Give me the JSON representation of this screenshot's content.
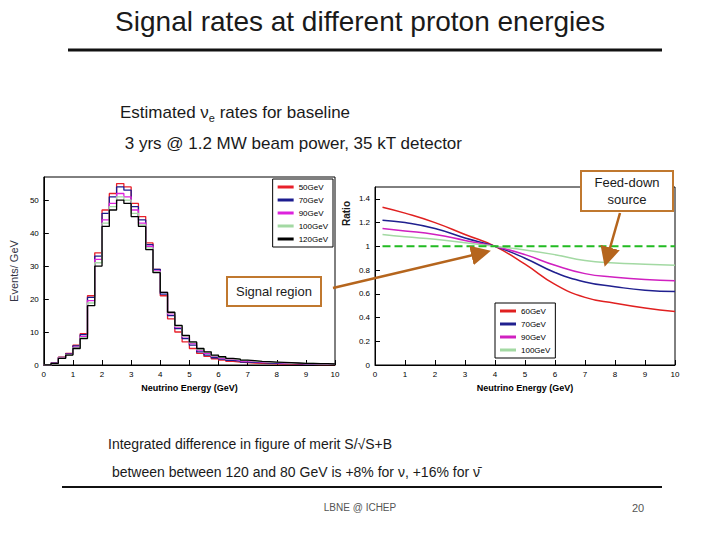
{
  "slide": {
    "title": "Signal rates at different proton energies",
    "subtitle": {
      "line1": {
        "text": "Estimated ν",
        "subscript": "e",
        "tail": " rates for baseline"
      },
      "line2": " 3 yrs @ 1.2 MW beam power, 35 kT detector"
    },
    "annotations": [
      {
        "lines": [
          "Feed-down",
          "source"
        ]
      },
      {
        "lines": [
          "Signal region"
        ]
      }
    ],
    "footer": {
      "line1": "Integrated difference in figure of merit S/√S+B",
      "line2": " between between 120 and 80 GeV is +8% for ν, +16% for ν̄"
    },
    "footer_center": "LBNE @ ICHEP",
    "page": "20"
  },
  "chart_data": [
    {
      "type": "histogram",
      "xlabel": "Neutrino Energy (GeV)",
      "ylabel": "Events/ GeV",
      "bins": [
        0,
        0.25,
        0.5,
        0.75,
        1,
        1.25,
        1.5,
        1.75,
        2,
        2.25,
        2.5,
        2.75,
        3,
        3.25,
        3.5,
        3.75,
        4,
        4.25,
        4.5,
        4.75,
        5,
        5.25,
        5.5,
        5.75,
        6,
        6.25,
        6.5,
        6.75,
        7,
        7.25,
        7.5,
        7.75,
        8,
        8.25,
        8.5,
        8.75,
        9,
        9.25,
        9.5,
        9.75,
        10
      ],
      "series": [
        {
          "name": "50GeV",
          "color": "#e8202a",
          "values": [
            0,
            0.6,
            2.4,
            3.5,
            6,
            9.5,
            21,
            34,
            47,
            52,
            55,
            54,
            49,
            45,
            37,
            29,
            21,
            14,
            10,
            7,
            5,
            3.5,
            2.6,
            1.9,
            1.5,
            1.1,
            0.9,
            0.7,
            0.6,
            0.5,
            0.4,
            0.35,
            0.3,
            0.25,
            0.2,
            0.2,
            0.18,
            0.15,
            0.15,
            0.1
          ]
        },
        {
          "name": "70GeV",
          "color": "#1c1c8f",
          "values": [
            0,
            0.6,
            2.3,
            3.4,
            5.8,
            9.2,
            20.5,
            33,
            46,
            51,
            54,
            53,
            48,
            44,
            36.5,
            29,
            21.5,
            15,
            11,
            8,
            6,
            4,
            3,
            2.2,
            1.8,
            1.4,
            1.2,
            0.9,
            0.8,
            0.7,
            0.6,
            0.5,
            0.45,
            0.4,
            0.35,
            0.3,
            0.3,
            0.25,
            0.25,
            0.2
          ]
        },
        {
          "name": "90GeV",
          "color": "#dd22dd",
          "values": [
            0,
            0.55,
            2.2,
            3.2,
            5.4,
            8.7,
            19.5,
            32,
            44,
            49,
            52,
            51,
            47,
            43,
            36,
            28.5,
            22,
            15.5,
            11.5,
            8.5,
            6.5,
            4.5,
            3.5,
            2.6,
            2.1,
            1.7,
            1.5,
            1.2,
            1.0,
            0.9,
            0.8,
            0.7,
            0.6,
            0.55,
            0.5,
            0.4,
            0.4,
            0.35,
            0.3,
            0.25
          ]
        },
        {
          "name": "100GeV",
          "color": "#a3d9a3",
          "values": [
            0,
            0.5,
            2.1,
            3.1,
            5.2,
            8.3,
            18.8,
            31,
            43,
            48,
            51,
            50,
            46,
            42.5,
            35.5,
            28.2,
            22,
            15.8,
            11.8,
            8.8,
            6.8,
            4.8,
            3.8,
            2.8,
            2.3,
            1.9,
            1.7,
            1.4,
            1.2,
            1.0,
            0.9,
            0.8,
            0.7,
            0.6,
            0.55,
            0.45,
            0.45,
            0.38,
            0.35,
            0.28
          ]
        },
        {
          "name": "120GeV",
          "color": "#000000",
          "values": [
            0,
            0.5,
            2,
            3,
            5,
            8,
            18,
            30,
            42,
            47,
            50,
            49,
            45,
            42,
            35,
            28,
            22,
            16,
            12,
            9,
            7,
            5,
            4,
            3,
            2.5,
            2,
            1.8,
            1.5,
            1.3,
            1.1,
            1,
            0.9,
            0.8,
            0.7,
            0.6,
            0.5,
            0.5,
            0.4,
            0.4,
            0.3
          ]
        }
      ],
      "xlim": [
        0,
        10
      ],
      "xticks": [
        0,
        1,
        2,
        3,
        4,
        5,
        6,
        7,
        8,
        9,
        10
      ],
      "ylim": [
        0,
        57
      ],
      "yticks": [
        0,
        10,
        20,
        30,
        40,
        50
      ],
      "grid": false,
      "legend": "upper right"
    },
    {
      "type": "line",
      "xlabel": "Neutrino Energy (GeV)",
      "ylabel": "Ratio",
      "x": [
        0.25,
        1,
        2,
        3,
        4,
        5,
        6,
        7,
        8,
        9,
        10
      ],
      "series": [
        {
          "name": "60GeV",
          "color": "#e02020",
          "values": [
            1.33,
            1.28,
            1.2,
            1.1,
            1.0,
            0.85,
            0.68,
            0.57,
            0.52,
            0.48,
            0.45
          ]
        },
        {
          "name": "70GeV",
          "color": "#20208f",
          "values": [
            1.22,
            1.2,
            1.15,
            1.07,
            1.0,
            0.9,
            0.78,
            0.7,
            0.66,
            0.63,
            0.62
          ]
        },
        {
          "name": "90GeV",
          "color": "#d020c0",
          "values": [
            1.15,
            1.13,
            1.1,
            1.05,
            1.0,
            0.93,
            0.84,
            0.77,
            0.74,
            0.72,
            0.71
          ]
        },
        {
          "name": "100GeV",
          "color": "#a3d9a3",
          "values": [
            1.1,
            1.08,
            1.06,
            1.03,
            1.0,
            0.97,
            0.93,
            0.88,
            0.86,
            0.85,
            0.84
          ]
        },
        {
          "color": "#22bb22",
          "line_style": "dashed",
          "values": [
            1,
            1,
            1,
            1,
            1,
            1,
            1,
            1,
            1,
            1,
            1
          ]
        }
      ],
      "xlim": [
        0,
        10
      ],
      "xticks": [
        0,
        1,
        2,
        3,
        4,
        5,
        6,
        7,
        8,
        9,
        10
      ],
      "ylim": [
        0,
        1.5
      ],
      "yticks": [
        0,
        0.2,
        0.4,
        0.6,
        0.8,
        1,
        1.2,
        1.4
      ],
      "grid": false,
      "legend": "lower center"
    }
  ]
}
